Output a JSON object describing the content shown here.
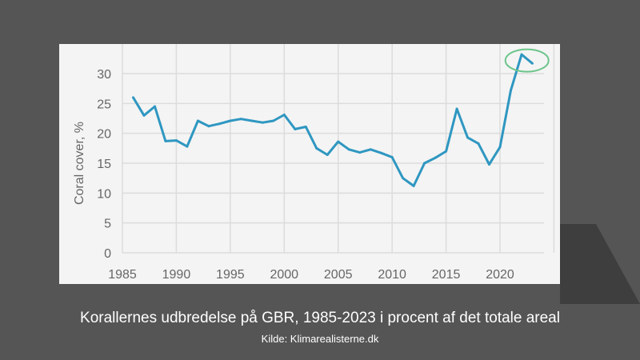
{
  "chart_data": {
    "type": "line",
    "title": "",
    "xlabel": "",
    "ylabel": "Coral cover, %",
    "xlim": [
      1985,
      2024
    ],
    "ylim": [
      0,
      35
    ],
    "xticks": [
      1985,
      1990,
      1995,
      2000,
      2005,
      2010,
      2015,
      2020
    ],
    "yticks": [
      0,
      5,
      10,
      15,
      20,
      25,
      30
    ],
    "grid": true,
    "line_color": "#2f97c1",
    "highlight_color": "#6cc48a",
    "highlight_years": [
      2022,
      2023
    ],
    "x": [
      1986,
      1987,
      1988,
      1989,
      1990,
      1991,
      1992,
      1993,
      1994,
      1995,
      1996,
      1997,
      1998,
      1999,
      2000,
      2001,
      2002,
      2003,
      2004,
      2005,
      2006,
      2007,
      2008,
      2009,
      2010,
      2011,
      2012,
      2013,
      2014,
      2015,
      2016,
      2017,
      2018,
      2019,
      2020,
      2021,
      2022,
      2023
    ],
    "values": [
      26.0,
      23.0,
      24.5,
      18.7,
      18.8,
      17.8,
      22.1,
      21.2,
      21.6,
      22.1,
      22.4,
      22.1,
      21.8,
      22.1,
      23.1,
      20.7,
      21.1,
      17.5,
      16.4,
      18.6,
      17.3,
      16.8,
      17.3,
      16.7,
      16.0,
      12.5,
      11.2,
      15.0,
      15.9,
      17.0,
      24.1,
      19.3,
      18.3,
      14.8,
      17.7,
      27.2,
      33.2,
      31.7
    ]
  },
  "caption": {
    "title": "Korallernes udbredelse på GBR, 1985-2023 i procent af det totale areal",
    "source": "Kilde: Klimarealisterne.dk"
  }
}
